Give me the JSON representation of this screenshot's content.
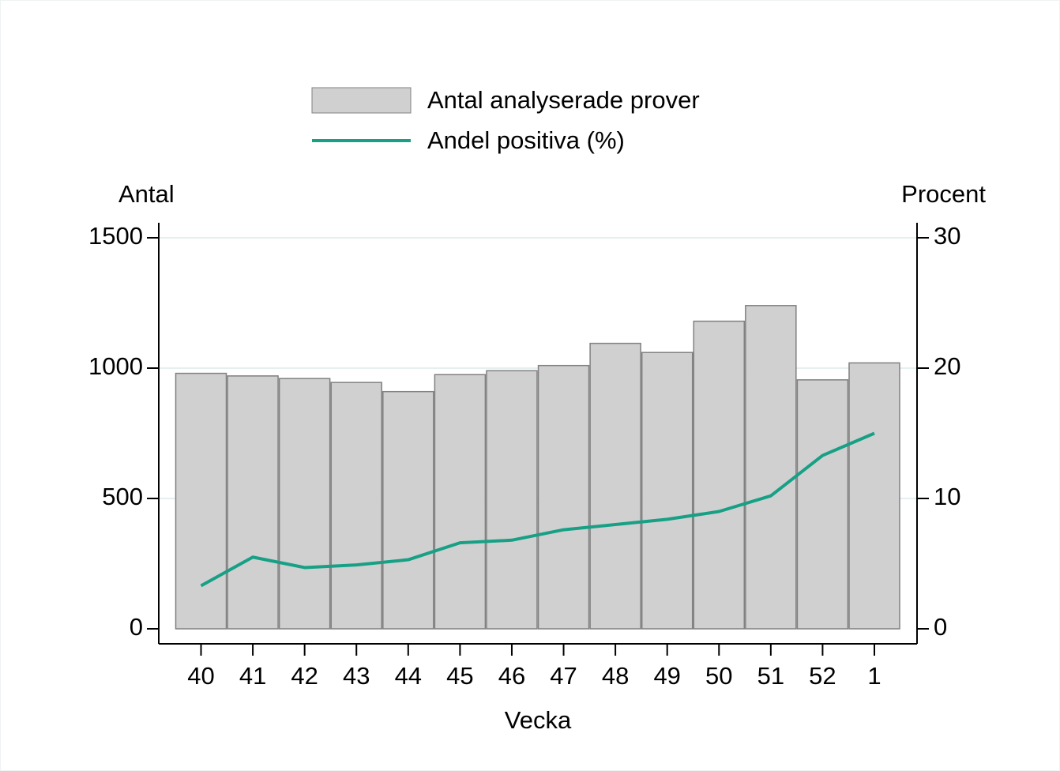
{
  "chart_data": {
    "type": "bar",
    "x_label": "Vecka",
    "y_label": "Antal",
    "y2_label": "Procent",
    "categories": [
      "40",
      "41",
      "42",
      "43",
      "44",
      "45",
      "46",
      "47",
      "48",
      "49",
      "50",
      "51",
      "52",
      "1"
    ],
    "series": [
      {
        "name": "Antal analyserade prover",
        "type": "bar",
        "color": "#d0d0d0",
        "values": [
          980,
          970,
          960,
          945,
          910,
          975,
          990,
          1010,
          1095,
          1060,
          1180,
          1240,
          955,
          1020
        ]
      },
      {
        "name": "Andel positiva (%)",
        "type": "line",
        "axis": "y2",
        "color": "#17a085",
        "values": [
          3.3,
          5.5,
          4.7,
          4.9,
          5.3,
          6.6,
          6.8,
          7.6,
          8.0,
          8.4,
          9.0,
          10.2,
          13.3,
          15.0
        ]
      }
    ],
    "ylim": [
      0,
      1500
    ],
    "yticks": [
      0,
      500,
      1000,
      1500
    ],
    "y2lim": [
      0,
      30
    ],
    "y2ticks": [
      0,
      10,
      20,
      30
    ],
    "grid": true
  }
}
